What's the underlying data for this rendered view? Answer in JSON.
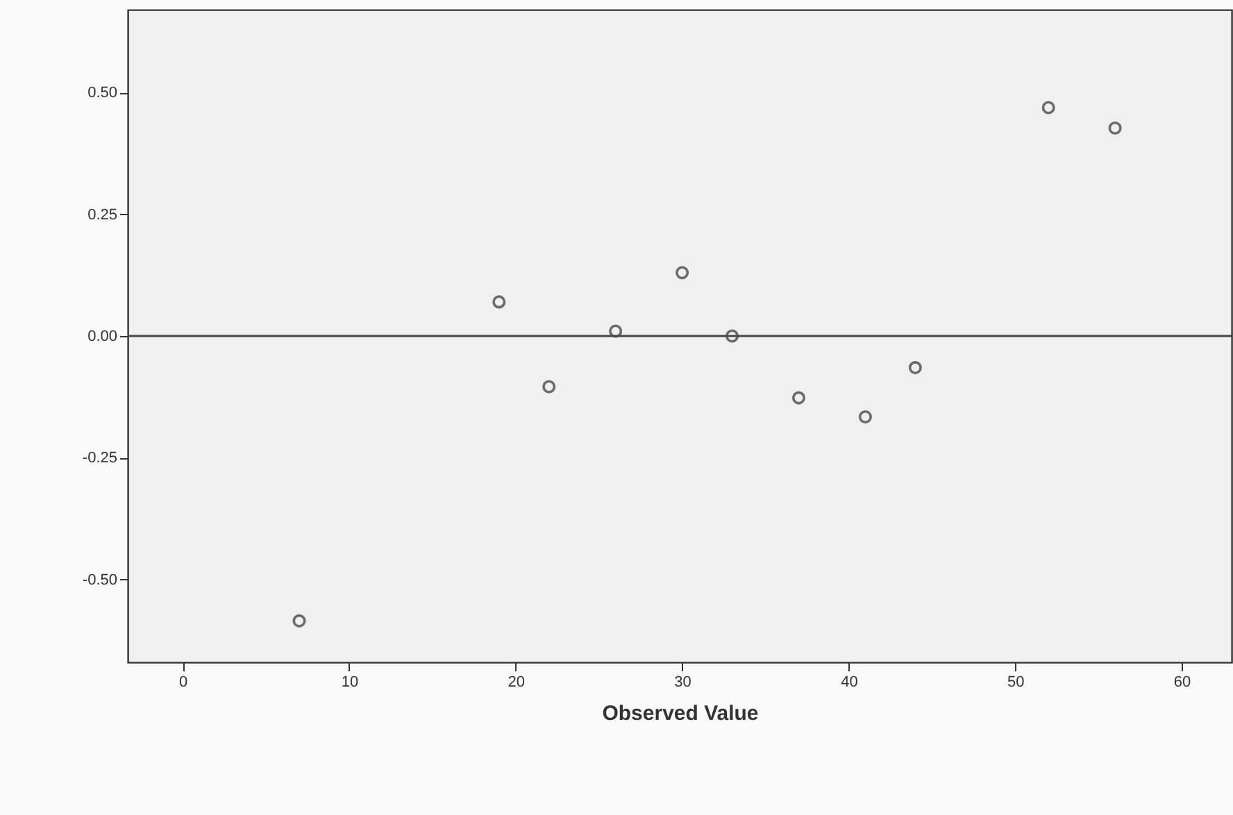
{
  "chart_data": {
    "type": "scatter",
    "xlabel": "Observed Value",
    "x": [
      7,
      19,
      22,
      26,
      30,
      33,
      37,
      41,
      44,
      52,
      56
    ],
    "series": [
      {
        "color": "#333333",
        "values": [
          -0.585,
          0.07,
          -0.104,
          0.01,
          0.13,
          0.0,
          -0.127,
          -0.166,
          -0.065,
          0.469,
          0.427
        ]
      }
    ],
    "xlim": [
      -3.3,
      63
    ],
    "xticks": [
      0,
      10,
      20,
      30,
      40,
      50,
      60
    ],
    "ylim": [
      -0.67,
      0.67
    ],
    "yticks": [
      {
        "value": -0.5,
        "label": "-0.50"
      },
      {
        "value": -0.25,
        "label": "-0.25"
      },
      {
        "value": 0,
        "label": "0.00"
      },
      {
        "value": 0.25,
        "label": "0.25"
      },
      {
        "value": 0.5,
        "label": "0.50"
      }
    ],
    "ref_lines": [
      {
        "axis": "y",
        "value": 0,
        "color": "#444444"
      }
    ],
    "marker": "circle",
    "grid": false,
    "legend": false
  }
}
